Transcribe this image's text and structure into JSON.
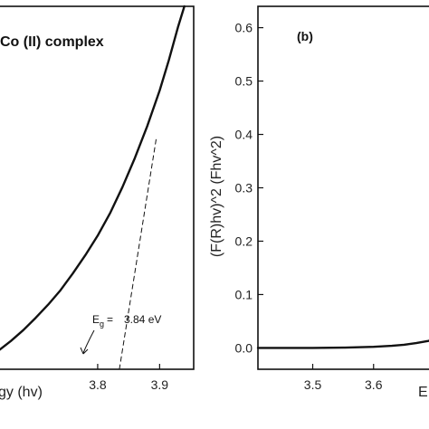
{
  "chart_data": [
    {
      "type": "line",
      "panel": "(a) - cropped",
      "title": "Co (II) complex",
      "xlabel": "gy (hv)",
      "ylabel": "",
      "xlim": [
        3.635,
        3.955
      ],
      "ylim": [
        0,
        1
      ],
      "xticks": [
        3.8,
        3.9
      ],
      "yticks": [],
      "series": [
        {
          "name": "",
          "style": "solid",
          "x": [
            3.635,
            3.66,
            3.68,
            3.7,
            3.72,
            3.74,
            3.76,
            3.78,
            3.8,
            3.82,
            3.84,
            3.86,
            3.88,
            3.9,
            3.915,
            3.93,
            3.94
          ],
          "y": [
            0.045,
            0.078,
            0.108,
            0.142,
            0.178,
            0.218,
            0.264,
            0.314,
            0.368,
            0.43,
            0.502,
            0.582,
            0.67,
            0.768,
            0.852,
            0.945,
            1.0
          ]
        },
        {
          "name": "",
          "style": "dashed",
          "x": [
            3.835,
            3.895
          ],
          "y": [
            0.0,
            0.64
          ]
        },
        {
          "name": "",
          "style": "dashed",
          "x": [
            3.635,
            3.89
          ],
          "y": [
            0.0,
            0.0
          ]
        }
      ],
      "annotation": {
        "label": "E",
        "subscript": "g",
        "equals": "=",
        "value": "3.84 eV"
      }
    },
    {
      "type": "line",
      "panel": "(b)",
      "title": "(b)",
      "xlabel": "E",
      "ylabel": "(F(R)hv)^2 (Fhv^2)",
      "xlim": [
        3.41,
        3.7
      ],
      "ylim": [
        -0.04,
        0.64
      ],
      "xticks": [
        3.5,
        3.6
      ],
      "yticks": [
        0.0,
        0.1,
        0.2,
        0.3,
        0.4,
        0.5,
        0.6
      ],
      "series": [
        {
          "name": "",
          "style": "solid",
          "x": [
            3.41,
            3.5,
            3.55,
            3.6,
            3.63,
            3.65,
            3.67,
            3.69,
            3.7
          ],
          "y": [
            0.0,
            0.0,
            0.0005,
            0.002,
            0.004,
            0.006,
            0.009,
            0.013,
            0.016
          ]
        }
      ]
    }
  ]
}
